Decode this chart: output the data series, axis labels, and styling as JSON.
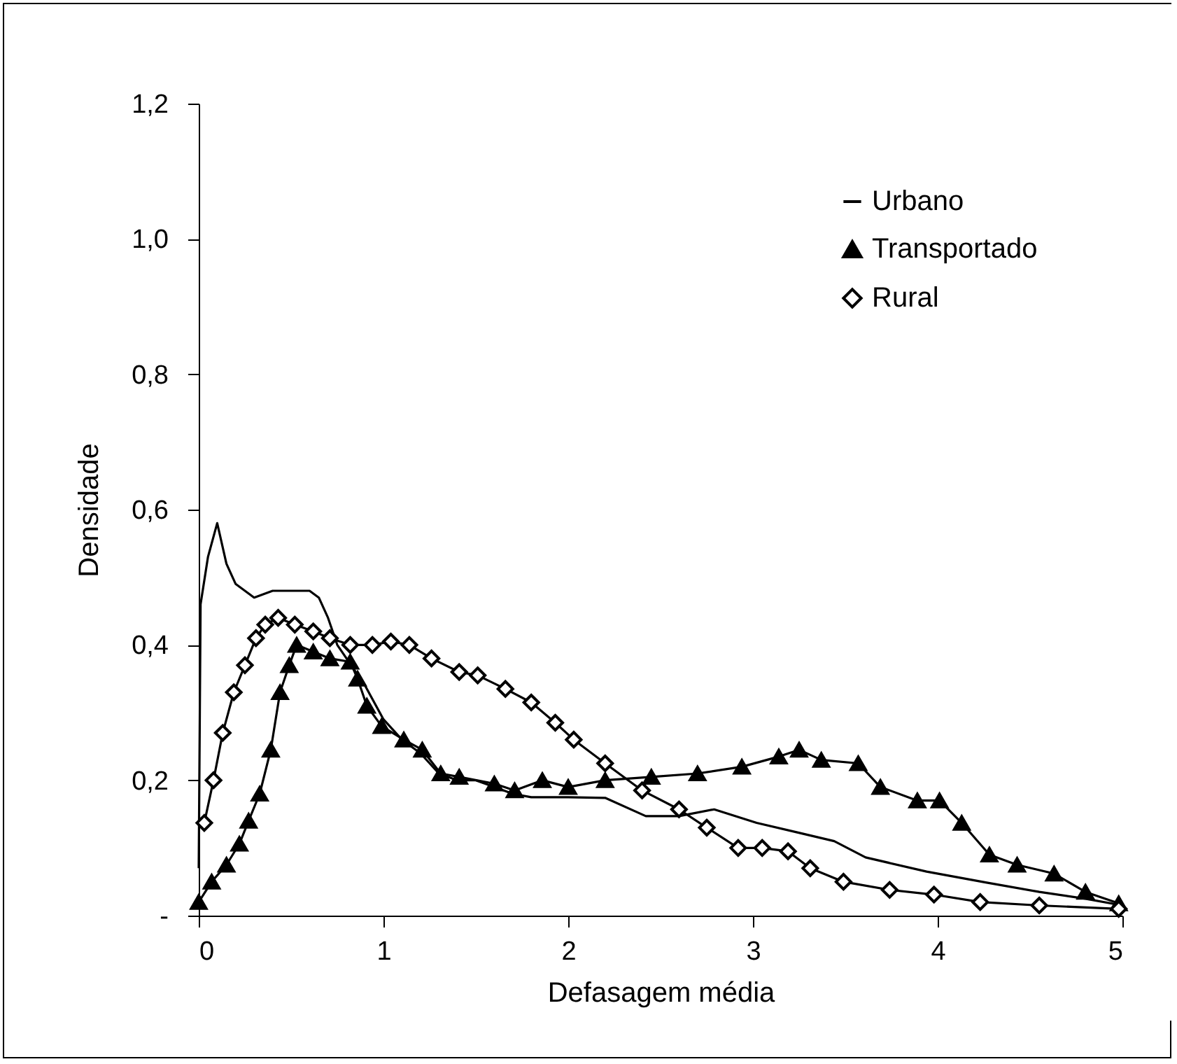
{
  "chart_data": {
    "type": "line",
    "xlabel": "Defasagem média",
    "ylabel": "Densidade",
    "xlim": [
      0,
      5
    ],
    "xticks": [
      0,
      1,
      2,
      3,
      4,
      5
    ],
    "ylim": [
      0,
      1.2
    ],
    "yticks": [
      {
        "value": 0,
        "label": "-"
      },
      {
        "value": 0.2,
        "label": "0,2"
      },
      {
        "value": 0.4,
        "label": "0,4"
      },
      {
        "value": 0.6,
        "label": "0,6"
      },
      {
        "value": 0.8,
        "label": "0,8"
      },
      {
        "value": 1.0,
        "label": "1,0"
      },
      {
        "value": 1.2,
        "label": "1,2"
      }
    ],
    "grid": false,
    "legend": "top right",
    "line_style": "solid",
    "series": [
      {
        "name": "Urbano",
        "color": "#000000",
        "marker": "none",
        "x": [
          0,
          0.01,
          0.05,
          0.1,
          0.15,
          0.2,
          0.3,
          0.4,
          0.5,
          0.6,
          0.65,
          0.7,
          0.75,
          0.8,
          0.9,
          1.0,
          1.1,
          1.2,
          1.3,
          1.4,
          1.5,
          1.6,
          1.7,
          1.8,
          2.0,
          2.2,
          2.42,
          2.6,
          2.79,
          3.02,
          3.24,
          3.44,
          3.61,
          3.94,
          4.26,
          4.55,
          4.8,
          5.0
        ],
        "values": [
          0.07,
          0.46,
          0.53,
          0.58,
          0.52,
          0.49,
          0.47,
          0.48,
          0.48,
          0.48,
          0.47,
          0.44,
          0.4,
          0.38,
          0.34,
          0.29,
          0.26,
          0.24,
          0.21,
          0.2,
          0.2,
          0.19,
          0.18,
          0.175,
          0.175,
          0.174,
          0.147,
          0.147,
          0.157,
          0.137,
          0.123,
          0.11,
          0.086,
          0.065,
          0.049,
          0.035,
          0.025,
          0.015
        ]
      },
      {
        "name": "Transportado",
        "color": "#000000",
        "marker": "triangle",
        "x": [
          0,
          0.07,
          0.15,
          0.22,
          0.27,
          0.33,
          0.39,
          0.44,
          0.49,
          0.53,
          0.62,
          0.71,
          0.82,
          0.86,
          0.91,
          0.99,
          1.11,
          1.21,
          1.31,
          1.41,
          1.6,
          1.71,
          1.86,
          2.0,
          2.2,
          2.45,
          2.7,
          2.94,
          3.14,
          3.25,
          3.37,
          3.57,
          3.69,
          3.89,
          4.01,
          4.13,
          4.28,
          4.43,
          4.63,
          4.8,
          4.98
        ],
        "values": [
          0.02,
          0.05,
          0.075,
          0.106,
          0.14,
          0.18,
          0.245,
          0.33,
          0.37,
          0.4,
          0.39,
          0.38,
          0.375,
          0.35,
          0.31,
          0.28,
          0.26,
          0.245,
          0.21,
          0.205,
          0.195,
          0.185,
          0.2,
          0.19,
          0.2,
          0.205,
          0.21,
          0.22,
          0.235,
          0.245,
          0.23,
          0.225,
          0.19,
          0.17,
          0.17,
          0.137,
          0.09,
          0.075,
          0.062,
          0.035,
          0.018
        ]
      },
      {
        "name": "Rural",
        "color": "#000000",
        "marker": "diamond",
        "x": [
          0.03,
          0.08,
          0.13,
          0.19,
          0.25,
          0.31,
          0.36,
          0.43,
          0.52,
          0.62,
          0.71,
          0.82,
          0.94,
          1.04,
          1.14,
          1.26,
          1.41,
          1.51,
          1.66,
          1.8,
          1.93,
          2.03,
          2.2,
          2.4,
          2.6,
          2.75,
          2.92,
          3.05,
          3.19,
          3.31,
          3.49,
          3.74,
          3.98,
          4.23,
          4.55,
          4.98
        ],
        "values": [
          0.137,
          0.2,
          0.27,
          0.33,
          0.37,
          0.41,
          0.43,
          0.44,
          0.43,
          0.42,
          0.41,
          0.4,
          0.4,
          0.405,
          0.4,
          0.38,
          0.36,
          0.355,
          0.335,
          0.315,
          0.285,
          0.26,
          0.225,
          0.185,
          0.157,
          0.13,
          0.1,
          0.1,
          0.095,
          0.07,
          0.05,
          0.038,
          0.031,
          0.02,
          0.015,
          0.01
        ]
      }
    ]
  }
}
